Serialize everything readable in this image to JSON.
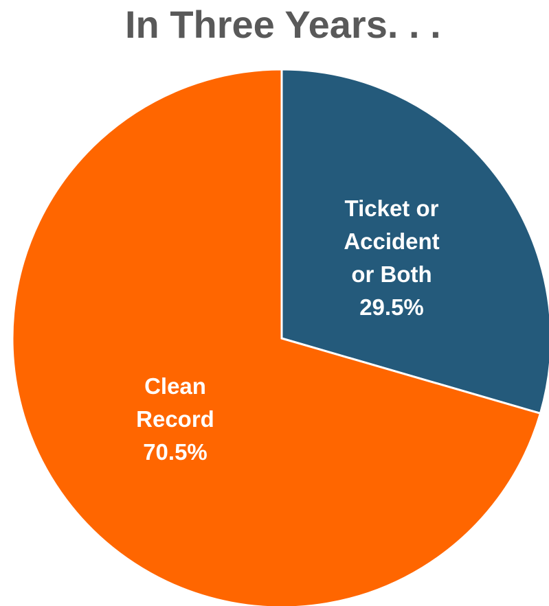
{
  "chart_data": {
    "type": "pie",
    "title": "In Three Years. . .",
    "slices": [
      {
        "label_lines": [
          "Ticket or",
          "Accident",
          "or Both"
        ],
        "value": 29.5,
        "value_label": "29.5%",
        "color": "#245a7b"
      },
      {
        "label_lines": [
          "Clean",
          "Record"
        ],
        "value": 70.5,
        "value_label": "70.5%",
        "color": "#ff6600"
      }
    ],
    "start_angle": "12 o'clock",
    "direction": "clockwise",
    "legend": "none",
    "slice_border_color": "#ffffff"
  }
}
